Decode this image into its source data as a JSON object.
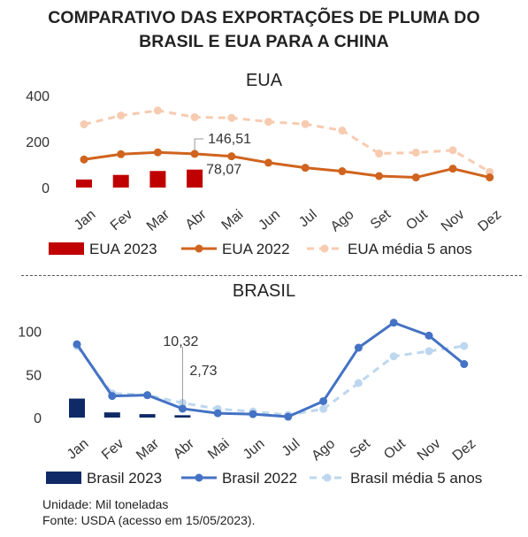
{
  "title_line1": "COMPARATIVO DAS EXPORTAÇÕES DE PLUMA DO",
  "title_line2": "BRASIL E EUA PARA A CHINA",
  "chart_data": [
    {
      "type": "bar+line",
      "subtitle": "EUA",
      "categories": [
        "Jan",
        "Fev",
        "Mar",
        "Abr",
        "Mai",
        "Jun",
        "Jul",
        "Ago",
        "Set",
        "Out",
        "Nov",
        "Dez"
      ],
      "ylim": [
        0,
        400
      ],
      "yticks": [
        0,
        200,
        400
      ],
      "grid": false,
      "legend_position": "bottom",
      "series": [
        {
          "name": "EUA 2023",
          "kind": "bar",
          "color": "#c00000",
          "values": [
            35,
            55,
            72,
            78.07,
            null,
            null,
            null,
            null,
            null,
            null,
            null,
            null
          ]
        },
        {
          "name": "EUA 2022",
          "kind": "line",
          "color": "#d0641e",
          "dashed": false,
          "values": [
            122,
            145,
            153,
            146.51,
            136,
            108,
            86,
            71,
            50,
            44,
            82,
            44
          ]
        },
        {
          "name": "EUA média 5 anos",
          "kind": "line",
          "color": "#f7cbb0",
          "dashed": true,
          "values": [
            275,
            313,
            335,
            306,
            303,
            286,
            276,
            248,
            148,
            152,
            162,
            68
          ]
        }
      ],
      "annotations": [
        {
          "text": "146,51",
          "category": "Abr",
          "series": "EUA 2022"
        },
        {
          "text": "78,07",
          "category": "Abr",
          "series": "EUA 2023"
        }
      ]
    },
    {
      "type": "bar+line",
      "subtitle": "BRASIL",
      "categories": [
        "Jan",
        "Fev",
        "Mar",
        "Abr",
        "Mai",
        "Jun",
        "Jul",
        "Ago",
        "Set",
        "Out",
        "Nov",
        "Dez"
      ],
      "ylim": [
        0,
        120
      ],
      "yticks": [
        0,
        50,
        100
      ],
      "grid": false,
      "legend_position": "bottom",
      "series": [
        {
          "name": "Brasil 2023",
          "kind": "bar",
          "color": "#0f2a66",
          "values": [
            22,
            6,
            4,
            2.73,
            null,
            null,
            null,
            null,
            null,
            null,
            null,
            null
          ]
        },
        {
          "name": "Brasil 2022",
          "kind": "line",
          "color": "#4472c4",
          "dashed": false,
          "values": [
            85,
            25,
            26,
            10.32,
            5,
            4,
            1,
            19,
            81,
            110,
            95,
            62
          ]
        },
        {
          "name": "Brasil média 5 anos",
          "kind": "line",
          "color": "#bdd7ee",
          "dashed": true,
          "values": [
            83,
            28,
            26,
            17,
            10,
            7,
            3,
            10,
            40,
            71,
            77,
            83
          ]
        }
      ],
      "annotations": [
        {
          "text": "10,32",
          "category": "Abr",
          "series": "Brasil 2022"
        },
        {
          "text": "2,73",
          "category": "Abr",
          "series": "Brasil 2023"
        }
      ]
    }
  ],
  "footer_unit": "Unidade: Mil toneladas",
  "footer_source": "Fonte: USDA (acesso em 15/05/2023)."
}
